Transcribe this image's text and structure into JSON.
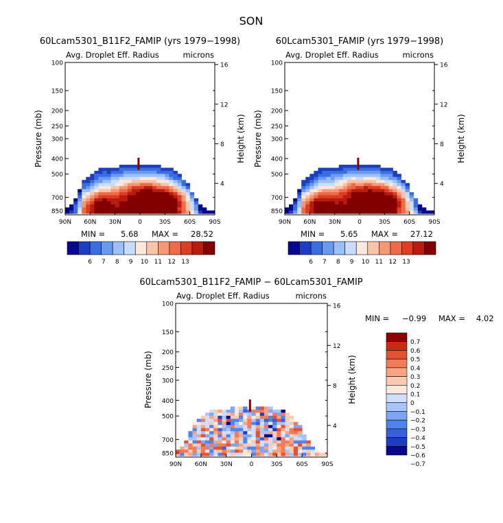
{
  "figure": {
    "title": "SON",
    "colors": {
      "levels_full": [
        "#08088e",
        "#1c3fc2",
        "#3a6de0",
        "#6a9af0",
        "#9cbff7",
        "#c8dcfb",
        "#fbe8dc",
        "#f8c4aa",
        "#f59876",
        "#ef6a47",
        "#dd3d22",
        "#b81c0f",
        "#840000"
      ],
      "levels_diff": [
        "#08088e",
        "#1c3fc2",
        "#3562d8",
        "#4f84ea",
        "#7ea6f3",
        "#a9c5f8",
        "#cfdffb",
        "#f9eadf",
        "#f8cbb2",
        "#f5a586",
        "#f07c5a",
        "#e6522f",
        "#c92b14",
        "#8c0000"
      ]
    }
  },
  "chart_data": [
    {
      "type": "heatmap",
      "title": "60Lcam5301_B11F2_FAMIP (yrs 1979−1998)",
      "variable": "Avg. Droplet Eff. Radius",
      "units": "microns",
      "xlabel": "",
      "ylabel": "Pressure (mb)",
      "y2label": "Height (km)",
      "x_ticks": [
        "90N",
        "60N",
        "30N",
        "0",
        "30S",
        "60S",
        "90S"
      ],
      "x_range": [
        90,
        -90
      ],
      "y_ticks": [
        100,
        150,
        200,
        250,
        300,
        400,
        500,
        700,
        850
      ],
      "y_range_mb": [
        100,
        900
      ],
      "y_scale": "log",
      "y2_ticks": [
        16,
        12,
        8,
        4
      ],
      "min_label": "MIN =",
      "min_value": "5.68",
      "max_label": "MAX =",
      "max_value": "28.52",
      "colorbar_levels": [
        "6",
        "7",
        "8",
        "9",
        "10",
        "11",
        "12",
        "13"
      ],
      "colorbar_orientation": "horizontal",
      "field": {
        "top_mb_by_lat": [
          [
            90,
            840
          ],
          [
            80,
            760
          ],
          [
            70,
            560
          ],
          [
            60,
            520
          ],
          [
            50,
            470
          ],
          [
            40,
            455
          ],
          [
            30,
            450
          ],
          [
            20,
            440
          ],
          [
            10,
            430
          ],
          [
            0,
            440
          ],
          [
            -10,
            430
          ],
          [
            -20,
            440
          ],
          [
            -30,
            450
          ],
          [
            -40,
            470
          ],
          [
            -50,
            520
          ],
          [
            -60,
            600
          ],
          [
            -70,
            760
          ],
          [
            -80,
            840
          ],
          [
            -90,
            860
          ]
        ],
        "core_lat": -5,
        "core_mb": 660,
        "core_value": 13,
        "bands": [
          {
            "lat": 50,
            "mb": 760,
            "value": 13
          },
          {
            "lat": -40,
            "mb": 720,
            "value": 13
          }
        ],
        "edge_value": 9.5,
        "top_value": 6
      }
    },
    {
      "type": "heatmap",
      "title": "60Lcam5301_FAMIP (yrs 1979−1998)",
      "variable": "Avg. Droplet Eff. Radius",
      "units": "microns",
      "xlabel": "",
      "ylabel": "Pressure (mb)",
      "y2label": "Height (km)",
      "x_ticks": [
        "90N",
        "60N",
        "30N",
        "0",
        "30S",
        "60S",
        "90S"
      ],
      "x_range": [
        90,
        -90
      ],
      "y_ticks": [
        100,
        150,
        200,
        250,
        300,
        400,
        500,
        700,
        850
      ],
      "y_range_mb": [
        100,
        900
      ],
      "y_scale": "log",
      "y2_ticks": [
        16,
        12,
        8,
        4
      ],
      "min_label": "MIN =",
      "min_value": "5.65",
      "max_label": "MAX =",
      "max_value": "27.12",
      "colorbar_levels": [
        "6",
        "7",
        "8",
        "9",
        "10",
        "11",
        "12",
        "13"
      ],
      "colorbar_orientation": "horizontal",
      "field": {
        "top_mb_by_lat": [
          [
            90,
            840
          ],
          [
            80,
            760
          ],
          [
            70,
            560
          ],
          [
            60,
            520
          ],
          [
            50,
            470
          ],
          [
            40,
            455
          ],
          [
            30,
            450
          ],
          [
            20,
            440
          ],
          [
            10,
            430
          ],
          [
            0,
            440
          ],
          [
            -10,
            430
          ],
          [
            -20,
            440
          ],
          [
            -30,
            450
          ],
          [
            -40,
            470
          ],
          [
            -50,
            520
          ],
          [
            -60,
            600
          ],
          [
            -70,
            760
          ],
          [
            -80,
            840
          ],
          [
            -90,
            860
          ]
        ],
        "core_lat": -5,
        "core_mb": 660,
        "core_value": 13,
        "bands": [
          {
            "lat": 50,
            "mb": 760,
            "value": 13
          },
          {
            "lat": -40,
            "mb": 720,
            "value": 13
          }
        ],
        "edge_value": 9.5,
        "top_value": 6
      }
    },
    {
      "type": "heatmap",
      "title": "60Lcam5301_B11F2_FAMIP − 60Lcam5301_FAMIP",
      "variable": "Avg. Droplet Eff. Radius",
      "units": "microns",
      "xlabel": "",
      "ylabel": "Pressure (mb)",
      "y2label": "Height (km)",
      "x_ticks": [
        "90N",
        "60N",
        "30N",
        "0",
        "30S",
        "60S",
        "90S"
      ],
      "x_range": [
        90,
        -90
      ],
      "y_ticks": [
        100,
        150,
        200,
        250,
        300,
        400,
        500,
        700,
        850
      ],
      "y_range_mb": [
        100,
        900
      ],
      "y_scale": "log",
      "y2_ticks": [
        16,
        12,
        8,
        4
      ],
      "min_label": "MIN =",
      "min_value": "−0.99",
      "max_label": "MAX =",
      "max_value": "4.02",
      "colorbar_levels": [
        "0.7",
        "0.6",
        "0.5",
        "0.4",
        "0.3",
        "0.2",
        "0.1",
        "0",
        "−0.1",
        "−0.2",
        "−0.3",
        "−0.4",
        "−0.5",
        "−0.6",
        "−0.7"
      ],
      "colorbar_orientation": "vertical",
      "field": {
        "top_mb_by_lat": [
          [
            90,
            840
          ],
          [
            80,
            760
          ],
          [
            70,
            560
          ],
          [
            60,
            520
          ],
          [
            50,
            470
          ],
          [
            40,
            455
          ],
          [
            30,
            450
          ],
          [
            20,
            440
          ],
          [
            10,
            430
          ],
          [
            0,
            440
          ],
          [
            -10,
            430
          ],
          [
            -20,
            440
          ],
          [
            -30,
            450
          ],
          [
            -40,
            470
          ],
          [
            -50,
            520
          ],
          [
            -60,
            600
          ],
          [
            -70,
            760
          ],
          [
            -80,
            840
          ],
          [
            -90,
            860
          ]
        ],
        "diff_min": -0.7,
        "diff_max": 0.7
      }
    }
  ]
}
